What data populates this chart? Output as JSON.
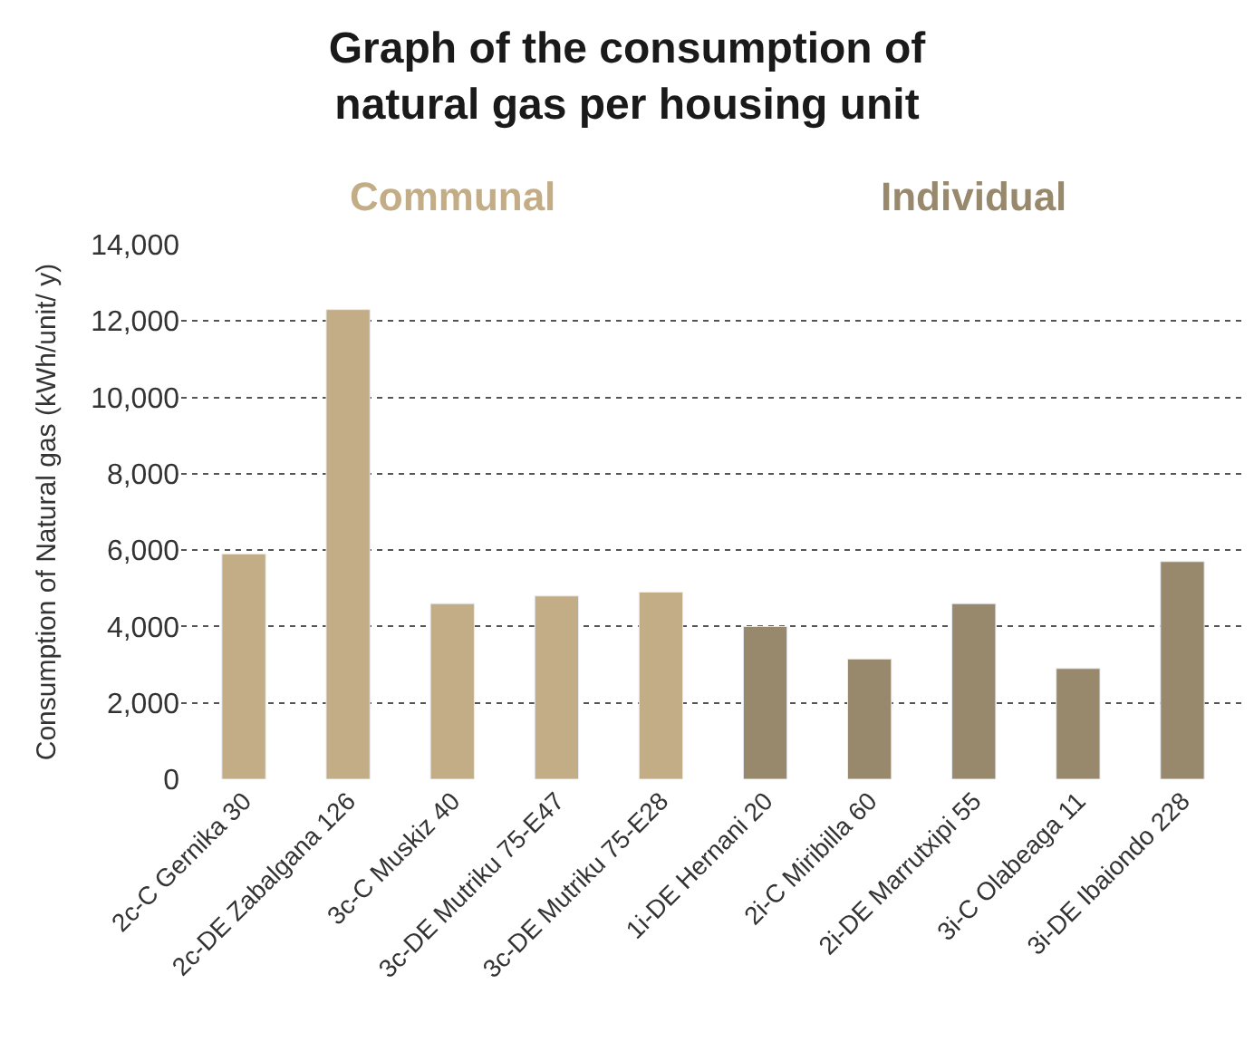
{
  "chart_data": {
    "type": "bar",
    "title": "Graph of the consumption of\nnatural gas per housing unit",
    "ylabel": "Consumption of Natural gas (kWh/unit/ y)",
    "categories": [
      "2c-C Gernika 30",
      "2c-DE Zabalgana 126",
      "3c-C Muskiz 40",
      "3c-DE Mutriku 75-E47",
      "3c-DE Mutriku 75-E28",
      "1i-DE Hernani 20",
      "2i-C Miribilla 60",
      "2i-DE Marrutxipi 55",
      "3i-C Olabeaga 11",
      "3i-DE Ibaiondo 228"
    ],
    "series": [
      {
        "name": "Communal",
        "color": "#c3ad87",
        "values": [
          5900,
          12300,
          4600,
          4800,
          4900,
          null,
          null,
          null,
          null,
          null
        ]
      },
      {
        "name": "Individual",
        "color": "#98896d",
        "values": [
          null,
          null,
          null,
          null,
          null,
          4000,
          3150,
          4600,
          2900,
          5700
        ]
      }
    ],
    "ylim": [
      0,
      14000
    ],
    "yticks": [
      {
        "value": 0,
        "label": "0"
      },
      {
        "value": 2000,
        "label": "2,000"
      },
      {
        "value": 4000,
        "label": "4,000"
      },
      {
        "value": 6000,
        "label": "6,000"
      },
      {
        "value": 8000,
        "label": "8,000"
      },
      {
        "value": 10000,
        "label": "10,000"
      },
      {
        "value": 12000,
        "label": "12,000"
      },
      {
        "value": 14000,
        "label": "14,000"
      }
    ],
    "grid": "y",
    "legend": false
  }
}
